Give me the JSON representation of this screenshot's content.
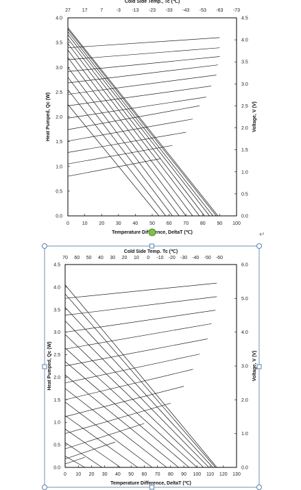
{
  "chart_data": [
    {
      "type": "line",
      "title": "Cold Side Temp., Tc (℃)",
      "xlabel": "Temperature Difference, DeltaT (℃)",
      "ylabel": "Heat Pumped, Qc (W)",
      "y2label": "Voltage, V (V)",
      "xlim": [
        0,
        100
      ],
      "ylim": [
        0,
        4.0
      ],
      "y2lim": [
        0,
        4.5
      ],
      "x_ticks": [
        "0",
        "10",
        "20",
        "30",
        "40",
        "50",
        "60",
        "70",
        "80",
        "90",
        "100"
      ],
      "y_ticks": [
        "0.0",
        "0.5",
        "1.0",
        "1.5",
        "2.0",
        "2.5",
        "3.0",
        "3.5",
        "4.0"
      ],
      "y2_ticks": [
        "0.0",
        "0.5",
        "1.0",
        "1.5",
        "2.0",
        "2.5",
        "3.0",
        "3.5",
        "4.0",
        "4.5"
      ],
      "top_ticks": [
        "27",
        "17",
        "7",
        "-3",
        "-13",
        "-23",
        "-33",
        "-43",
        "-53",
        "-63",
        "-73"
      ],
      "qc_series": [
        {
          "x": [
            0,
            54
          ],
          "y": [
            2.25,
            0
          ]
        },
        {
          "x": [
            0,
            58
          ],
          "y": [
            2.55,
            0
          ]
        },
        {
          "x": [
            0,
            62
          ],
          "y": [
            2.8,
            0
          ]
        },
        {
          "x": [
            0,
            66
          ],
          "y": [
            3.0,
            0
          ]
        },
        {
          "x": [
            0,
            70
          ],
          "y": [
            3.2,
            0
          ]
        },
        {
          "x": [
            0,
            74
          ],
          "y": [
            3.35,
            0
          ]
        },
        {
          "x": [
            0,
            78
          ],
          "y": [
            3.48,
            0
          ]
        },
        {
          "x": [
            0,
            81
          ],
          "y": [
            3.58,
            0
          ]
        },
        {
          "x": [
            0,
            84
          ],
          "y": [
            3.66,
            0
          ]
        },
        {
          "x": [
            0,
            86
          ],
          "y": [
            3.72,
            0
          ]
        },
        {
          "x": [
            0,
            88
          ],
          "y": [
            3.77,
            0
          ]
        },
        {
          "x": [
            0,
            89
          ],
          "y": [
            3.8,
            0
          ]
        }
      ],
      "v_series": [
        {
          "x": [
            0,
            55
          ],
          "y": [
            0.9,
            1.3
          ]
        },
        {
          "x": [
            0,
            62
          ],
          "y": [
            1.18,
            1.6
          ]
        },
        {
          "x": [
            0,
            70
          ],
          "y": [
            1.44,
            1.9
          ]
        },
        {
          "x": [
            0,
            74
          ],
          "y": [
            1.7,
            2.2
          ]
        },
        {
          "x": [
            0,
            78
          ],
          "y": [
            1.96,
            2.5
          ]
        },
        {
          "x": [
            0,
            82
          ],
          "y": [
            2.22,
            2.7
          ]
        },
        {
          "x": [
            0,
            85
          ],
          "y": [
            2.5,
            2.95
          ]
        },
        {
          "x": [
            0,
            88
          ],
          "y": [
            2.76,
            3.2
          ]
        },
        {
          "x": [
            0,
            89
          ],
          "y": [
            3.02,
            3.43
          ]
        },
        {
          "x": [
            0,
            90
          ],
          "y": [
            3.28,
            3.62
          ]
        },
        {
          "x": [
            0,
            90
          ],
          "y": [
            3.55,
            3.82
          ]
        },
        {
          "x": [
            0,
            90
          ],
          "y": [
            3.82,
            4.05
          ]
        }
      ],
      "grid": false,
      "legend": "none"
    },
    {
      "type": "line",
      "title": "Cold Side Temp. Tc (℃)",
      "xlabel": "Temperature Difference, DeltaT (℃)",
      "ylabel": "Heat Pumped, Qc (W)",
      "y2label": "Voltage, V (V)",
      "xlim": [
        0,
        130
      ],
      "ylim": [
        0,
        4.5
      ],
      "y2lim": [
        0,
        6.0
      ],
      "x_ticks": [
        "0",
        "10",
        "20",
        "30",
        "40",
        "50",
        "60",
        "70",
        "80",
        "90",
        "100",
        "110",
        "120",
        "130"
      ],
      "y_ticks": [
        "0.0",
        "0.5",
        "1.0",
        "1.5",
        "2.0",
        "2.5",
        "3.0",
        "3.5",
        "4.0",
        "4.5"
      ],
      "y2_ticks": [
        "0.0",
        "1.0",
        "2.0",
        "3.0",
        "4.0",
        "5.0",
        "6.0"
      ],
      "top_ticks": [
        "70",
        "60",
        "50",
        "40",
        "30",
        "20",
        "10",
        "0",
        "-10",
        "-20",
        "-30",
        "-40",
        "-50",
        "-60"
      ],
      "qc_series": [
        {
          "x": [
            0,
            15
          ],
          "y": [
            0.25,
            0
          ]
        },
        {
          "x": [
            0,
            28
          ],
          "y": [
            0.55,
            0
          ]
        },
        {
          "x": [
            0,
            42
          ],
          "y": [
            0.85,
            0
          ]
        },
        {
          "x": [
            0,
            55
          ],
          "y": [
            1.15,
            0
          ]
        },
        {
          "x": [
            0,
            66
          ],
          "y": [
            1.45,
            0
          ]
        },
        {
          "x": [
            0,
            77
          ],
          "y": [
            1.75,
            0
          ]
        },
        {
          "x": [
            0,
            86
          ],
          "y": [
            2.05,
            0
          ]
        },
        {
          "x": [
            0,
            94
          ],
          "y": [
            2.35,
            0
          ]
        },
        {
          "x": [
            0,
            100
          ],
          "y": [
            2.65,
            0
          ]
        },
        {
          "x": [
            0,
            105
          ],
          "y": [
            2.95,
            0
          ]
        },
        {
          "x": [
            0,
            109
          ],
          "y": [
            3.25,
            0
          ]
        },
        {
          "x": [
            0,
            112
          ],
          "y": [
            3.55,
            0
          ]
        },
        {
          "x": [
            0,
            114
          ],
          "y": [
            3.85,
            0
          ]
        },
        {
          "x": [
            0,
            115
          ],
          "y": [
            4.05,
            0
          ]
        }
      ],
      "v_series": [
        {
          "x": [
            0,
            15
          ],
          "y": [
            0.1,
            0.3
          ]
        },
        {
          "x": [
            0,
            38
          ],
          "y": [
            0.25,
            0.75
          ]
        },
        {
          "x": [
            0,
            60
          ],
          "y": [
            0.55,
            1.3
          ]
        },
        {
          "x": [
            0,
            80
          ],
          "y": [
            1.0,
            1.9
          ]
        },
        {
          "x": [
            0,
            90
          ],
          "y": [
            1.5,
            2.4
          ]
        },
        {
          "x": [
            0,
            97
          ],
          "y": [
            2.0,
            2.9
          ]
        },
        {
          "x": [
            0,
            102
          ],
          "y": [
            2.5,
            3.35
          ]
        },
        {
          "x": [
            0,
            108
          ],
          "y": [
            3.0,
            3.8
          ]
        },
        {
          "x": [
            0,
            111
          ],
          "y": [
            3.5,
            4.25
          ]
        },
        {
          "x": [
            0,
            114
          ],
          "y": [
            4.0,
            4.65
          ]
        },
        {
          "x": [
            0,
            115
          ],
          "y": [
            4.5,
            5.05
          ]
        },
        {
          "x": [
            0,
            115
          ],
          "y": [
            5.0,
            5.45
          ]
        }
      ],
      "grid": false,
      "legend": "none"
    }
  ],
  "decor": {
    "paragraph_mark": "↵"
  }
}
